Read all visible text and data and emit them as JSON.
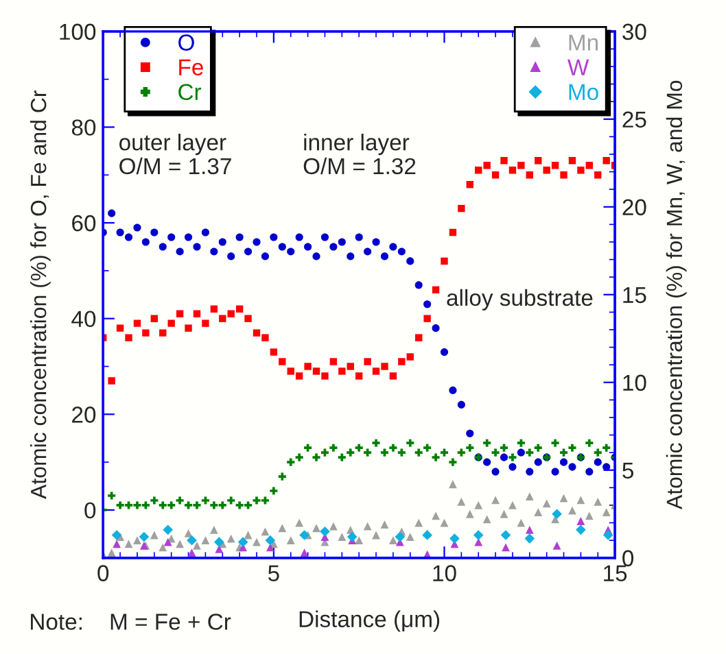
{
  "chart_data": {
    "type": "scatter",
    "xlabel": "Distance (μm)",
    "ylabel": "Atomic concentration (%) for O, Fe and Cr",
    "y2label": "Atomic concentration (%) for Mn, W, and Mo",
    "annotations": [
      "outer layer\nO/M = 1.37",
      "inner layer\nO/M = 1.32",
      "alloy substrate",
      "Note:    M = Fe + Cr"
    ],
    "xlim": [
      0,
      15
    ],
    "ylim": [
      -10,
      100
    ],
    "y2lim": [
      0,
      30
    ],
    "xticks": [
      0,
      {
        "value": 0.5,
        "label": null
      },
      {
        "value": 1,
        "label": null
      },
      {
        "value": 1.5,
        "label": null
      },
      {
        "value": 2,
        "label": null
      },
      {
        "value": 2.5,
        "label": null
      },
      {
        "value": 3,
        "label": null
      },
      {
        "value": 3.5,
        "label": null
      },
      {
        "value": 4,
        "label": null
      },
      {
        "value": 4.5,
        "label": null
      },
      5,
      {
        "value": 5.5,
        "label": null
      },
      {
        "value": 6,
        "label": null
      },
      {
        "value": 6.5,
        "label": null
      },
      {
        "value": 7,
        "label": null
      },
      {
        "value": 7.5,
        "label": null
      },
      {
        "value": 8,
        "label": null
      },
      {
        "value": 8.5,
        "label": null
      },
      {
        "value": 9,
        "label": null
      },
      {
        "value": 9.5,
        "label": null
      },
      10,
      {
        "value": 10.5,
        "label": null
      },
      {
        "value": 11,
        "label": null
      },
      {
        "value": 11.5,
        "label": null
      },
      {
        "value": 12,
        "label": null
      },
      {
        "value": 12.5,
        "label": null
      },
      {
        "value": 13,
        "label": null
      },
      {
        "value": 13.5,
        "label": null
      },
      {
        "value": 14,
        "label": null
      },
      {
        "value": 14.5,
        "label": null
      },
      15
    ],
    "yticks": [
      {
        "value": -10,
        "label": null
      },
      0,
      {
        "value": 10,
        "label": null
      },
      20,
      {
        "value": 30,
        "label": null
      },
      40,
      {
        "value": 50,
        "label": null
      },
      60,
      {
        "value": 70,
        "label": null
      },
      80,
      {
        "value": 90,
        "label": null
      },
      100
    ],
    "y2ticks": [
      0,
      {
        "value": 1,
        "label": null
      },
      {
        "value": 2,
        "label": null
      },
      {
        "value": 3,
        "label": null
      },
      {
        "value": 4,
        "label": null
      },
      5,
      {
        "value": 6,
        "label": null
      },
      {
        "value": 7,
        "label": null
      },
      {
        "value": 8,
        "label": null
      },
      {
        "value": 9,
        "label": null
      },
      10,
      {
        "value": 11,
        "label": null
      },
      {
        "value": 12,
        "label": null
      },
      {
        "value": 13,
        "label": null
      },
      {
        "value": 14,
        "label": null
      },
      15,
      {
        "value": 16,
        "label": null
      },
      {
        "value": 17,
        "label": null
      },
      {
        "value": 18,
        "label": null
      },
      {
        "value": 19,
        "label": null
      },
      20,
      {
        "value": 21,
        "label": null
      },
      {
        "value": 22,
        "label": null
      },
      {
        "value": 23,
        "label": null
      },
      {
        "value": 24,
        "label": null
      },
      25,
      {
        "value": 26,
        "label": null
      },
      {
        "value": 27,
        "label": null
      },
      {
        "value": 28,
        "label": null
      },
      {
        "value": 29,
        "label": null
      },
      30
    ],
    "grid": false,
    "legend": "top left",
    "x": [
      0,
      0.25,
      0.5,
      0.75,
      1,
      1.25,
      1.5,
      1.75,
      2,
      2.25,
      2.5,
      2.75,
      3,
      3.25,
      3.5,
      3.75,
      4,
      4.25,
      4.5,
      4.75,
      5,
      5.25,
      5.5,
      5.75,
      6,
      6.25,
      6.5,
      6.75,
      7,
      7.25,
      7.5,
      7.75,
      8,
      8.25,
      8.5,
      8.75,
      9,
      9.25,
      9.5,
      9.75,
      10,
      10.25,
      10.5,
      10.75,
      11,
      11.25,
      11.5,
      11.75,
      12,
      12.25,
      12.5,
      12.75,
      13,
      13.25,
      13.5,
      13.75,
      14,
      14.25,
      14.5,
      14.75,
      15
    ],
    "series": [
      {
        "name": "O",
        "color": "#0000cc",
        "marker": "circle",
        "values": [
          58,
          62,
          58,
          57,
          59,
          56,
          58,
          55,
          57,
          54,
          57,
          55,
          58,
          54,
          56,
          53,
          57,
          54,
          56,
          53,
          57,
          55,
          54,
          57,
          55,
          53,
          57,
          55,
          56,
          53,
          57,
          54,
          56,
          53,
          55,
          54,
          52,
          47,
          43,
          38,
          33,
          25,
          22,
          16,
          11,
          10,
          8,
          11,
          9,
          12,
          8,
          10,
          11,
          8,
          10,
          9,
          11,
          8,
          10,
          9,
          11
        ]
      },
      {
        "name": "Fe",
        "color": "#ff0000",
        "marker": "square",
        "values": [
          36,
          27,
          38,
          36,
          39,
          37,
          40,
          37,
          39,
          41,
          38,
          41,
          39,
          42,
          40,
          41,
          42,
          40,
          37,
          36,
          33,
          31,
          29,
          28,
          30,
          29,
          28,
          31,
          29,
          30,
          28,
          31,
          29,
          30,
          28,
          31,
          32,
          36,
          40,
          46,
          52,
          58,
          63,
          68,
          71,
          72,
          70,
          73,
          71,
          72,
          70,
          73,
          71,
          72,
          70,
          73,
          71,
          72,
          70,
          73,
          72
        ]
      },
      {
        "name": "Cr",
        "color": "#008000",
        "marker": "cross",
        "values": [
          0,
          3,
          1,
          1,
          1,
          1,
          2,
          1,
          1,
          2,
          1,
          1,
          2,
          1,
          1,
          2,
          1,
          1,
          2,
          2,
          4,
          7,
          10,
          11,
          13,
          11,
          12,
          13,
          11,
          12,
          13,
          12,
          14,
          12,
          13,
          12,
          14,
          12,
          13,
          11,
          12,
          10,
          12,
          13,
          11,
          14,
          12,
          13,
          11,
          14,
          12,
          13,
          11,
          14,
          12,
          13,
          11,
          14,
          12,
          13,
          11
        ]
      },
      {
        "name": "Mn",
        "color": "#a0a0a0",
        "marker": "triangle",
        "axis": "y2",
        "values": [
          0.2,
          0.3,
          1.2,
          0.8,
          1.0,
          0.7,
          1.3,
          0.6,
          1.1,
          0.8,
          1.4,
          0.7,
          1.0,
          1.6,
          0.8,
          1.1,
          0.6,
          1.3,
          0.9,
          1.5,
          0.8,
          1.7,
          1.0,
          2.0,
          1.3,
          1.7,
          0.9,
          1.8,
          1.2,
          1.6,
          1.0,
          1.8,
          1.3,
          1.9,
          1.0,
          1.5,
          1.2,
          2.0,
          1.4,
          2.4,
          2.0,
          4.2,
          3.2,
          2.5,
          3.0,
          2.2,
          3.3,
          2.5,
          3.0,
          2.0,
          3.5,
          2.6,
          3.1,
          2.2,
          3.4,
          2.7,
          3.3,
          2.4,
          3.2,
          2.6,
          3.0
        ]
      },
      {
        "name": "W",
        "color": "#b040d0",
        "marker": "triangle",
        "axis": "y2",
        "x": [
          0.4,
          1.2,
          1.9,
          2.6,
          3.4,
          4.1,
          4.9,
          5.9,
          6.5,
          7.3,
          8.7,
          9.5,
          10.3,
          11.0,
          11.8,
          12.5,
          13.3,
          14.0,
          14.8
        ],
        "values": [
          0.8,
          0.7,
          0.9,
          0.3,
          0.5,
          0.6,
          0.6,
          0.3,
          1.2,
          1.0,
          0.9,
          0.2,
          0.8,
          0.9,
          0.6,
          1.6,
          0.7,
          2.1,
          1.6
        ]
      },
      {
        "name": "Mo",
        "color": "#10b0e0",
        "marker": "diamond",
        "axis": "y2",
        "x": [
          0.4,
          1.2,
          1.9,
          2.6,
          3.4,
          4.1,
          4.9,
          5.9,
          6.5,
          7.3,
          8.7,
          9.5,
          10.3,
          11.0,
          11.8,
          12.5,
          13.3,
          14.0,
          14.8
        ],
        "values": [
          1.3,
          1.2,
          1.6,
          1.0,
          0.9,
          0.9,
          1.0,
          1.3,
          1.5,
          1.2,
          1.2,
          1.3,
          1.1,
          1.3,
          1.3,
          1.1,
          2.5,
          1.6,
          1.3
        ]
      }
    ]
  }
}
